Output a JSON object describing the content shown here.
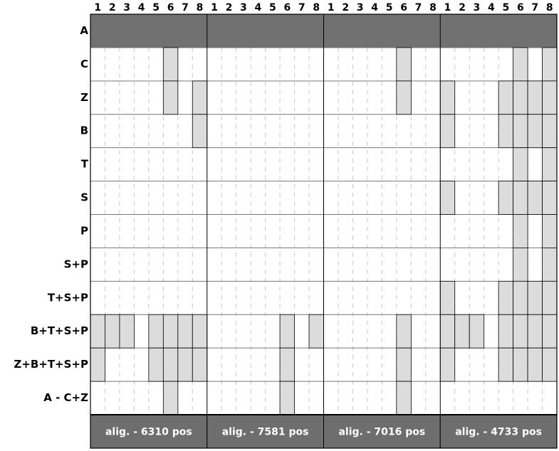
{
  "chart_data": {
    "type": "grid",
    "columns": [
      "1",
      "2",
      "3",
      "4",
      "5",
      "6",
      "7",
      "8"
    ],
    "blocks": [
      "alig. - 6310 pos",
      "alig. - 7581 pos",
      "alig. - 7016 pos",
      "alig. - 4733 pos"
    ],
    "series": [
      {
        "name": "A",
        "color": "#717171",
        "values": [
          [
            1,
            1,
            1,
            1,
            1,
            1,
            1,
            1
          ],
          [
            1,
            1,
            1,
            1,
            1,
            1,
            1,
            1
          ],
          [
            1,
            1,
            1,
            1,
            1,
            1,
            1,
            1
          ],
          [
            1,
            1,
            1,
            1,
            1,
            1,
            1,
            1
          ]
        ]
      },
      {
        "name": "C",
        "color": "#dcdcdc",
        "values": [
          [
            0,
            0,
            0,
            0,
            0,
            1,
            0,
            0
          ],
          [
            0,
            0,
            0,
            0,
            0,
            0,
            0,
            0
          ],
          [
            0,
            0,
            0,
            0,
            0,
            1,
            0,
            0
          ],
          [
            0,
            0,
            0,
            0,
            0,
            1,
            0,
            1
          ]
        ]
      },
      {
        "name": "Z",
        "color": "#dcdcdc",
        "values": [
          [
            0,
            0,
            0,
            0,
            0,
            1,
            0,
            1
          ],
          [
            0,
            0,
            0,
            0,
            0,
            0,
            0,
            0
          ],
          [
            0,
            0,
            0,
            0,
            0,
            1,
            0,
            0
          ],
          [
            1,
            0,
            0,
            0,
            1,
            1,
            1,
            1
          ]
        ]
      },
      {
        "name": "B",
        "color": "#dcdcdc",
        "values": [
          [
            0,
            0,
            0,
            0,
            0,
            0,
            0,
            1
          ],
          [
            0,
            0,
            0,
            0,
            0,
            0,
            0,
            0
          ],
          [
            0,
            0,
            0,
            0,
            0,
            0,
            0,
            0
          ],
          [
            1,
            0,
            0,
            0,
            1,
            1,
            1,
            1
          ]
        ]
      },
      {
        "name": "T",
        "color": "#dcdcdc",
        "values": [
          [
            0,
            0,
            0,
            0,
            0,
            0,
            0,
            0
          ],
          [
            0,
            0,
            0,
            0,
            0,
            0,
            0,
            0
          ],
          [
            0,
            0,
            0,
            0,
            0,
            0,
            0,
            0
          ],
          [
            0,
            0,
            0,
            0,
            0,
            1,
            0,
            1
          ]
        ]
      },
      {
        "name": "S",
        "color": "#dcdcdc",
        "values": [
          [
            0,
            0,
            0,
            0,
            0,
            0,
            0,
            0
          ],
          [
            0,
            0,
            0,
            0,
            0,
            0,
            0,
            0
          ],
          [
            0,
            0,
            0,
            0,
            0,
            0,
            0,
            0
          ],
          [
            1,
            0,
            0,
            0,
            1,
            1,
            1,
            1
          ]
        ]
      },
      {
        "name": "P",
        "color": "#dcdcdc",
        "values": [
          [
            0,
            0,
            0,
            0,
            0,
            0,
            0,
            0
          ],
          [
            0,
            0,
            0,
            0,
            0,
            0,
            0,
            0
          ],
          [
            0,
            0,
            0,
            0,
            0,
            0,
            0,
            0
          ],
          [
            0,
            0,
            0,
            0,
            0,
            1,
            0,
            1
          ]
        ]
      },
      {
        "name": "S+P",
        "color": "#dcdcdc",
        "values": [
          [
            0,
            0,
            0,
            0,
            0,
            0,
            0,
            0
          ],
          [
            0,
            0,
            0,
            0,
            0,
            0,
            0,
            0
          ],
          [
            0,
            0,
            0,
            0,
            0,
            0,
            0,
            0
          ],
          [
            0,
            0,
            0,
            0,
            0,
            1,
            0,
            1
          ]
        ]
      },
      {
        "name": "T+S+P",
        "color": "#dcdcdc",
        "values": [
          [
            0,
            0,
            0,
            0,
            0,
            0,
            0,
            0
          ],
          [
            0,
            0,
            0,
            0,
            0,
            0,
            0,
            0
          ],
          [
            0,
            0,
            0,
            0,
            0,
            0,
            0,
            0
          ],
          [
            1,
            0,
            0,
            0,
            1,
            1,
            1,
            1
          ]
        ]
      },
      {
        "name": "B+T+S+P",
        "color": "#dcdcdc",
        "values": [
          [
            1,
            1,
            1,
            0,
            1,
            1,
            1,
            1
          ],
          [
            0,
            0,
            0,
            0,
            0,
            1,
            0,
            1
          ],
          [
            0,
            0,
            0,
            0,
            0,
            1,
            0,
            0
          ],
          [
            1,
            1,
            1,
            0,
            1,
            1,
            1,
            1
          ]
        ]
      },
      {
        "name": "Z+B+T+S+P",
        "color": "#dcdcdc",
        "values": [
          [
            1,
            0,
            0,
            0,
            1,
            1,
            1,
            1
          ],
          [
            0,
            0,
            0,
            0,
            0,
            1,
            0,
            0
          ],
          [
            0,
            0,
            0,
            0,
            0,
            1,
            0,
            0
          ],
          [
            1,
            0,
            0,
            0,
            1,
            1,
            1,
            1
          ]
        ]
      },
      {
        "name": "A - C+Z",
        "color": "#dcdcdc",
        "values": [
          [
            0,
            0,
            0,
            0,
            0,
            1,
            0,
            0
          ],
          [
            0,
            0,
            0,
            0,
            0,
            1,
            0,
            0
          ],
          [
            0,
            0,
            0,
            0,
            0,
            1,
            0,
            0
          ],
          [
            0,
            0,
            0,
            0,
            0,
            0,
            0,
            0
          ]
        ]
      }
    ]
  }
}
